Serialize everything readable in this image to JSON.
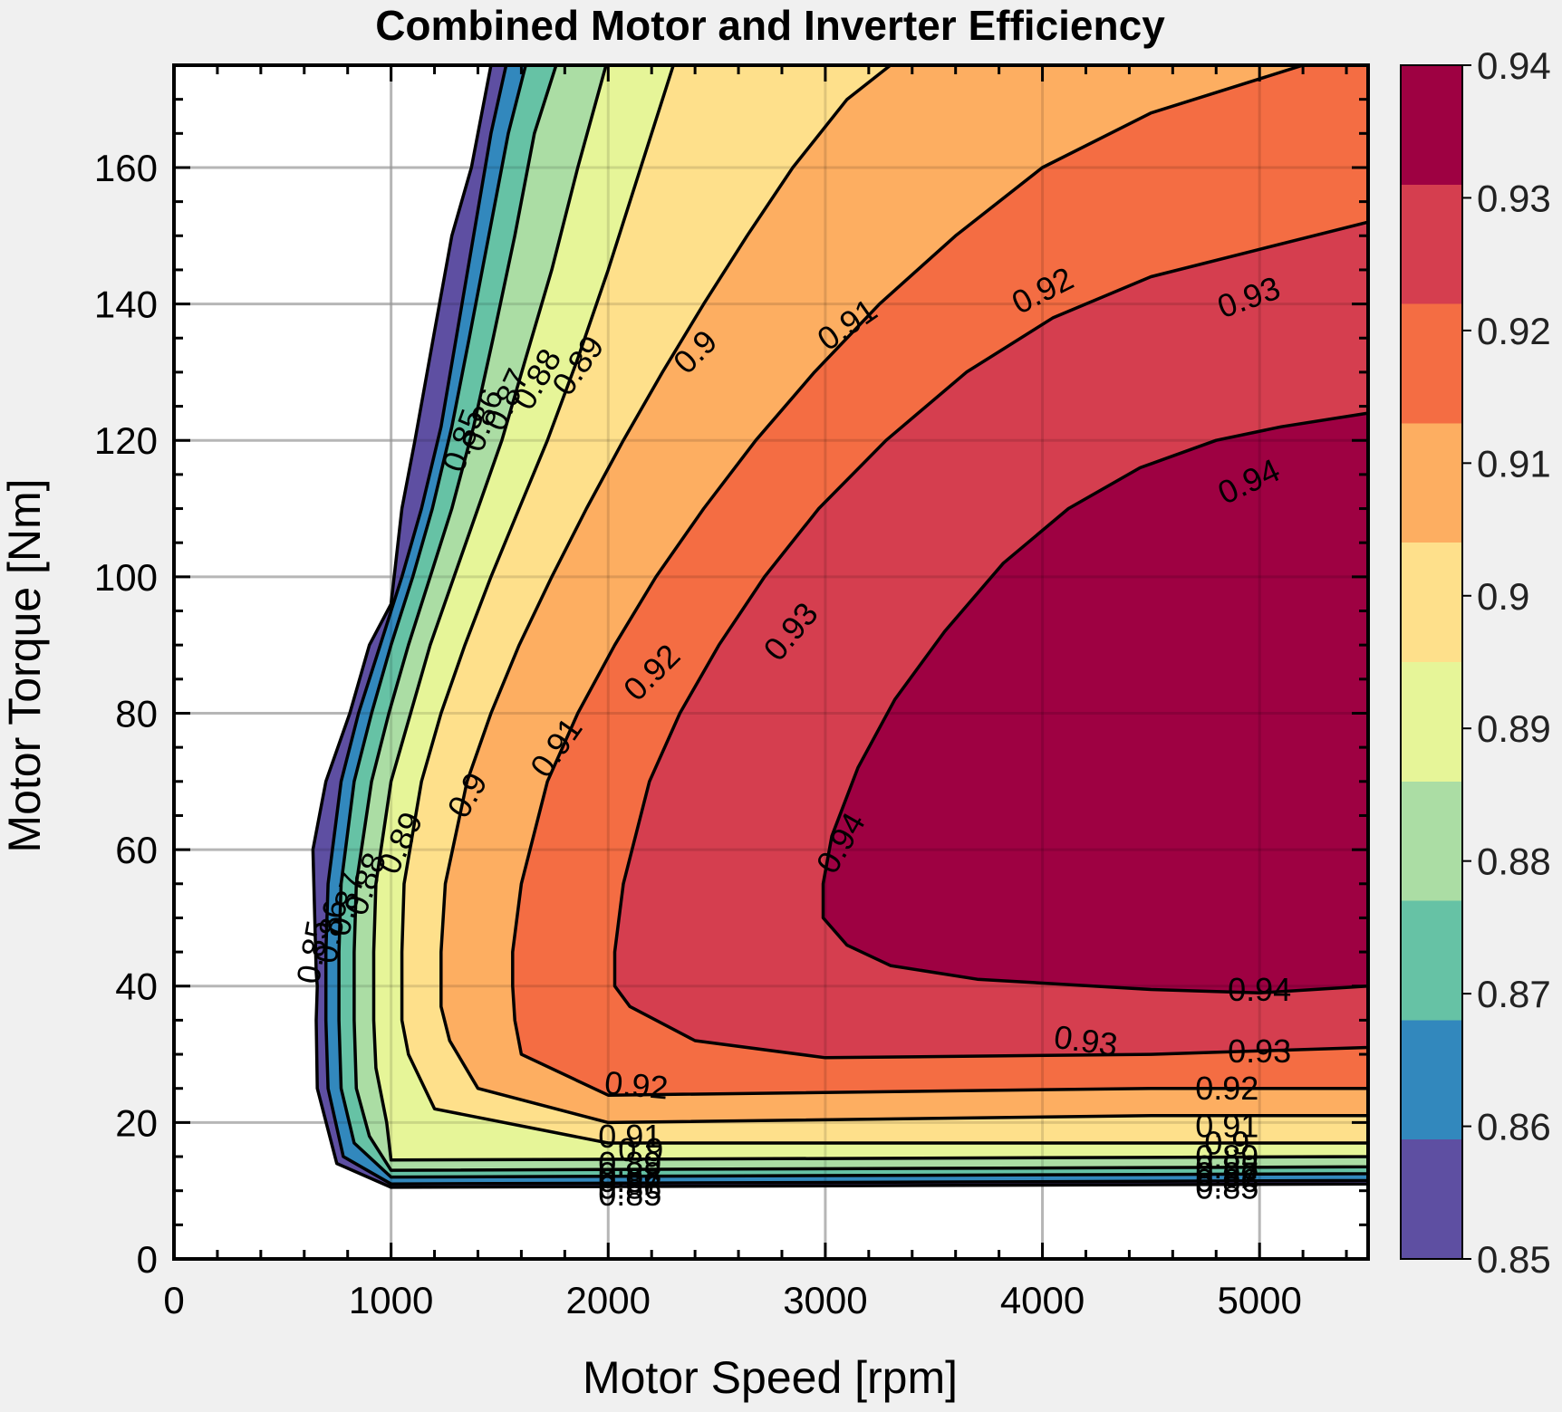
{
  "chart_data": {
    "type": "contour",
    "title": "Combined Motor and Inverter Efficiency",
    "xlabel": "Motor Speed [rpm]",
    "ylabel": "Motor Torque [Nm]",
    "xlim": [
      0,
      5500
    ],
    "ylim": [
      0,
      175
    ],
    "xticks": [
      0,
      1000,
      2000,
      3000,
      4000,
      5000
    ],
    "yticks": [
      0,
      20,
      40,
      60,
      80,
      100,
      120,
      140,
      160
    ],
    "grid": true,
    "colormap": "Spectral_r",
    "colorbar": {
      "range": [
        0.85,
        0.94
      ],
      "ticks": [
        "0.85",
        "0.86",
        "0.87",
        "0.88",
        "0.89",
        "0.9",
        "0.91",
        "0.92",
        "0.93",
        "0.94"
      ]
    },
    "levels": [
      0.85,
      0.86,
      0.87,
      0.88,
      0.89,
      0.9,
      0.91,
      0.92,
      0.93,
      0.94
    ],
    "level_colors": [
      "#5e4fa2",
      "#3288bd",
      "#66c2a5",
      "#abdda4",
      "#e6f598",
      "#fee08b",
      "#fdae61",
      "#f46d43",
      "#d53e4f",
      "#9e0142"
    ],
    "contours": [
      {
        "level": 0.85,
        "points": [
          [
            660,
            40
          ],
          [
            655,
            42
          ],
          [
            640,
            60
          ],
          [
            700,
            70
          ],
          [
            810,
            80
          ],
          [
            900,
            90
          ],
          [
            1000,
            96
          ],
          [
            1050,
            110
          ],
          [
            1110,
            120
          ],
          [
            1200,
            136
          ],
          [
            1280,
            150
          ],
          [
            1370,
            160
          ],
          [
            1460,
            175
          ],
          [
            5500,
            175
          ],
          [
            5500,
            11
          ],
          [
            1000,
            10.5
          ],
          [
            750,
            14
          ],
          [
            660,
            25
          ],
          [
            655,
            35
          ]
        ]
      },
      {
        "level": 0.86,
        "points": [
          [
            700,
            40
          ],
          [
            700,
            45
          ],
          [
            710,
            55
          ],
          [
            770,
            70
          ],
          [
            850,
            80
          ],
          [
            950,
            90
          ],
          [
            1050,
            100
          ],
          [
            1140,
            110
          ],
          [
            1230,
            122
          ],
          [
            1300,
            135
          ],
          [
            1380,
            150
          ],
          [
            1460,
            165
          ],
          [
            1530,
            175
          ],
          [
            5500,
            175
          ],
          [
            5500,
            11.5
          ],
          [
            1000,
            11
          ],
          [
            780,
            15
          ],
          [
            710,
            25
          ],
          [
            700,
            35
          ]
        ]
      },
      {
        "level": 0.87,
        "points": [
          [
            760,
            40
          ],
          [
            760,
            45
          ],
          [
            770,
            55
          ],
          [
            830,
            70
          ],
          [
            910,
            80
          ],
          [
            1000,
            90
          ],
          [
            1100,
            100
          ],
          [
            1190,
            110
          ],
          [
            1280,
            122
          ],
          [
            1360,
            135
          ],
          [
            1450,
            150
          ],
          [
            1540,
            165
          ],
          [
            1620,
            175
          ],
          [
            5500,
            175
          ],
          [
            5500,
            12.5
          ],
          [
            1000,
            12
          ],
          [
            830,
            17
          ],
          [
            770,
            25
          ],
          [
            760,
            35
          ]
        ]
      },
      {
        "level": 0.88,
        "points": [
          [
            830,
            40
          ],
          [
            830,
            45
          ],
          [
            840,
            55
          ],
          [
            910,
            70
          ],
          [
            990,
            80
          ],
          [
            1080,
            90
          ],
          [
            1180,
            100
          ],
          [
            1280,
            110
          ],
          [
            1380,
            122
          ],
          [
            1470,
            135
          ],
          [
            1570,
            150
          ],
          [
            1660,
            165
          ],
          [
            1760,
            175
          ],
          [
            5500,
            175
          ],
          [
            5500,
            13.5
          ],
          [
            1000,
            13
          ],
          [
            900,
            18
          ],
          [
            840,
            25
          ],
          [
            830,
            35
          ]
        ]
      },
      {
        "level": 0.89,
        "points": [
          [
            920,
            40
          ],
          [
            920,
            45
          ],
          [
            930,
            55
          ],
          [
            1000,
            70
          ],
          [
            1090,
            80
          ],
          [
            1180,
            90
          ],
          [
            1290,
            100
          ],
          [
            1400,
            110
          ],
          [
            1510,
            120
          ],
          [
            1620,
            132
          ],
          [
            1740,
            145
          ],
          [
            1860,
            160
          ],
          [
            1990,
            175
          ],
          [
            5500,
            175
          ],
          [
            5500,
            15
          ],
          [
            1000,
            14.5
          ],
          [
            980,
            20
          ],
          [
            930,
            28
          ],
          [
            920,
            35
          ]
        ]
      },
      {
        "level": 0.9,
        "points": [
          [
            1050,
            40
          ],
          [
            1050,
            45
          ],
          [
            1060,
            55
          ],
          [
            1140,
            70
          ],
          [
            1230,
            80
          ],
          [
            1340,
            90
          ],
          [
            1460,
            100
          ],
          [
            1590,
            110
          ],
          [
            1720,
            120
          ],
          [
            1860,
            132
          ],
          [
            2000,
            145
          ],
          [
            2150,
            160
          ],
          [
            2300,
            175
          ],
          [
            5500,
            175
          ],
          [
            5500,
            17
          ],
          [
            2000,
            17
          ],
          [
            1200,
            22
          ],
          [
            1080,
            30
          ],
          [
            1050,
            35
          ]
        ]
      },
      {
        "level": 0.91,
        "points": [
          [
            1230,
            40
          ],
          [
            1230,
            45
          ],
          [
            1250,
            55
          ],
          [
            1350,
            70
          ],
          [
            1460,
            80
          ],
          [
            1590,
            90
          ],
          [
            1740,
            100
          ],
          [
            1900,
            110
          ],
          [
            2070,
            120
          ],
          [
            2250,
            130
          ],
          [
            2440,
            140
          ],
          [
            2640,
            150
          ],
          [
            2850,
            160
          ],
          [
            3100,
            170
          ],
          [
            3300,
            175
          ],
          [
            5500,
            175
          ],
          [
            5500,
            21
          ],
          [
            4500,
            21
          ],
          [
            2000,
            20
          ],
          [
            1400,
            25
          ],
          [
            1270,
            32
          ],
          [
            1230,
            37
          ]
        ]
      },
      {
        "level": 0.92,
        "points": [
          [
            1560,
            40
          ],
          [
            1560,
            45
          ],
          [
            1600,
            55
          ],
          [
            1720,
            70
          ],
          [
            1860,
            80
          ],
          [
            2030,
            90
          ],
          [
            2220,
            100
          ],
          [
            2440,
            110
          ],
          [
            2680,
            120
          ],
          [
            2950,
            130
          ],
          [
            3250,
            140
          ],
          [
            3600,
            150
          ],
          [
            4000,
            160
          ],
          [
            4500,
            168
          ],
          [
            5000,
            173
          ],
          [
            5200,
            175
          ],
          [
            5500,
            175
          ],
          [
            5500,
            25
          ],
          [
            4500,
            25
          ],
          [
            2000,
            24
          ],
          [
            1600,
            30
          ],
          [
            1570,
            35
          ]
        ]
      },
      {
        "level": 0.93,
        "points": [
          [
            2030,
            40
          ],
          [
            2030,
            45
          ],
          [
            2070,
            55
          ],
          [
            2190,
            70
          ],
          [
            2330,
            80
          ],
          [
            2510,
            90
          ],
          [
            2720,
            100
          ],
          [
            2970,
            110
          ],
          [
            3280,
            120
          ],
          [
            3650,
            130
          ],
          [
            4050,
            138
          ],
          [
            4500,
            144
          ],
          [
            5000,
            148
          ],
          [
            5500,
            152
          ],
          [
            5500,
            31
          ],
          [
            4500,
            30
          ],
          [
            3000,
            29.5
          ],
          [
            2400,
            32
          ],
          [
            2100,
            37
          ]
        ]
      },
      {
        "level": 0.94,
        "points": [
          [
            2990,
            50
          ],
          [
            2990,
            55
          ],
          [
            3030,
            62
          ],
          [
            3150,
            72
          ],
          [
            3320,
            82
          ],
          [
            3550,
            92
          ],
          [
            3820,
            102
          ],
          [
            4120,
            110
          ],
          [
            4450,
            116
          ],
          [
            4800,
            120
          ],
          [
            5100,
            122
          ],
          [
            5500,
            124
          ],
          [
            5500,
            40
          ],
          [
            5000,
            39
          ],
          [
            4500,
            39.5
          ],
          [
            3700,
            41
          ],
          [
            3300,
            43
          ],
          [
            3100,
            46
          ]
        ]
      }
    ],
    "contour_labels": [
      {
        "text": "0.85",
        "x": 1330,
        "y": 120,
        "angle": -70
      },
      {
        "text": "0.86",
        "x": 1420,
        "y": 123,
        "angle": -70
      },
      {
        "text": "0.87",
        "x": 1530,
        "y": 126,
        "angle": -65
      },
      {
        "text": "0.88",
        "x": 1670,
        "y": 129,
        "angle": -60
      },
      {
        "text": "0.89",
        "x": 1860,
        "y": 131,
        "angle": -55
      },
      {
        "text": "0.9",
        "x": 2400,
        "y": 133,
        "angle": -45
      },
      {
        "text": "0.91",
        "x": 3100,
        "y": 137,
        "angle": -35
      },
      {
        "text": "0.92",
        "x": 4000,
        "y": 142,
        "angle": -27
      },
      {
        "text": "0.93",
        "x": 4950,
        "y": 141,
        "angle": -20
      },
      {
        "text": "0.94",
        "x": 4950,
        "y": 114,
        "angle": -25
      },
      {
        "text": "0.85",
        "x": 640,
        "y": 45,
        "angle": -80
      },
      {
        "text": "0.86",
        "x": 720,
        "y": 48,
        "angle": -80
      },
      {
        "text": "0.87",
        "x": 790,
        "y": 52,
        "angle": -75
      },
      {
        "text": "0.88",
        "x": 880,
        "y": 55,
        "angle": -70
      },
      {
        "text": "0.89",
        "x": 1040,
        "y": 61,
        "angle": -65
      },
      {
        "text": "0.9",
        "x": 1350,
        "y": 68,
        "angle": -60
      },
      {
        "text": "0.91",
        "x": 1760,
        "y": 75,
        "angle": -55
      },
      {
        "text": "0.92",
        "x": 2200,
        "y": 86,
        "angle": -45
      },
      {
        "text": "0.93",
        "x": 2840,
        "y": 92,
        "angle": -50
      },
      {
        "text": "0.94",
        "x": 3070,
        "y": 61,
        "angle": -60
      },
      {
        "text": "0.94",
        "x": 5000,
        "y": 39.5,
        "angle": 0
      },
      {
        "text": "0.93",
        "x": 4200,
        "y": 32,
        "angle": 8
      },
      {
        "text": "0.92",
        "x": 2130,
        "y": 25.5,
        "angle": 5
      },
      {
        "text": "0.93",
        "x": 5000,
        "y": 30.5,
        "angle": 0
      },
      {
        "text": "0.92",
        "x": 4850,
        "y": 25,
        "angle": 0
      },
      {
        "text": "0.91",
        "x": 2100,
        "y": 18,
        "angle": 0
      },
      {
        "text": "0.91",
        "x": 4850,
        "y": 19.5,
        "angle": 0
      },
      {
        "text": "0.9",
        "x": 2150,
        "y": 16,
        "angle": 0
      },
      {
        "text": "0.9",
        "x": 4850,
        "y": 17,
        "angle": 0
      },
      {
        "text": "0.89",
        "x": 2100,
        "y": 14,
        "angle": 0
      },
      {
        "text": "0.89",
        "x": 4850,
        "y": 15,
        "angle": 0
      },
      {
        "text": "0.88",
        "x": 2100,
        "y": 12.5,
        "angle": 0
      },
      {
        "text": "0.88",
        "x": 4850,
        "y": 13.5,
        "angle": 0
      },
      {
        "text": "0.87",
        "x": 2100,
        "y": 11.5,
        "angle": 0
      },
      {
        "text": "0.87",
        "x": 4850,
        "y": 12.5,
        "angle": 0
      },
      {
        "text": "0.86",
        "x": 2100,
        "y": 10.5,
        "angle": 0
      },
      {
        "text": "0.86",
        "x": 4850,
        "y": 11.5,
        "angle": 0
      },
      {
        "text": "0.85",
        "x": 2100,
        "y": 9.5,
        "angle": 0
      },
      {
        "text": "0.85",
        "x": 4850,
        "y": 10.5,
        "angle": 0
      }
    ]
  }
}
